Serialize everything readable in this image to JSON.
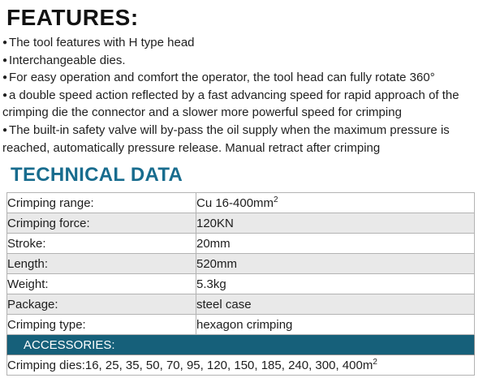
{
  "features": {
    "title": "FEATURES:",
    "bullet": "●",
    "items": [
      "The tool features with H type head",
      "Interchangeable dies.",
      "For easy operation and comfort the operator, the tool head can fully rotate 360°",
      "a double speed action reflected by a fast advancing speed for rapid approach of the crimping die the connector and a slower more powerful speed for crimping",
      "The built-in safety valve will by-pass the oil supply when the maximum pressure is reached, automatically pressure release. Manual retract after crimping"
    ]
  },
  "technical": {
    "title": "TECHNICAL DATA",
    "rows": [
      {
        "label": "Crimping range:",
        "value": "Cu 16-400mm",
        "sup": "2"
      },
      {
        "label": "Crimping force:",
        "value": "120KN",
        "sup": ""
      },
      {
        "label": "Stroke:",
        "value": "20mm",
        "sup": ""
      },
      {
        "label": "Length:",
        "value": "520mm",
        "sup": ""
      },
      {
        "label": "Weight:",
        "value": "5.3kg",
        "sup": ""
      },
      {
        "label": "Package:",
        "value": "steel case",
        "sup": ""
      },
      {
        "label": "Crimping type:",
        "value": "hexagon crimping",
        "sup": ""
      }
    ],
    "accessories": {
      "label": "ACCESSORIES:",
      "value": "Crimping dies:16, 25, 35, 50, 70, 95, 120, 150, 185, 240, 300, 400m",
      "sup": "2"
    }
  },
  "colors": {
    "heading_teal": "#186c8e",
    "accessories_bg": "#16607a",
    "row_alt_bg": "#e9e9e9"
  }
}
